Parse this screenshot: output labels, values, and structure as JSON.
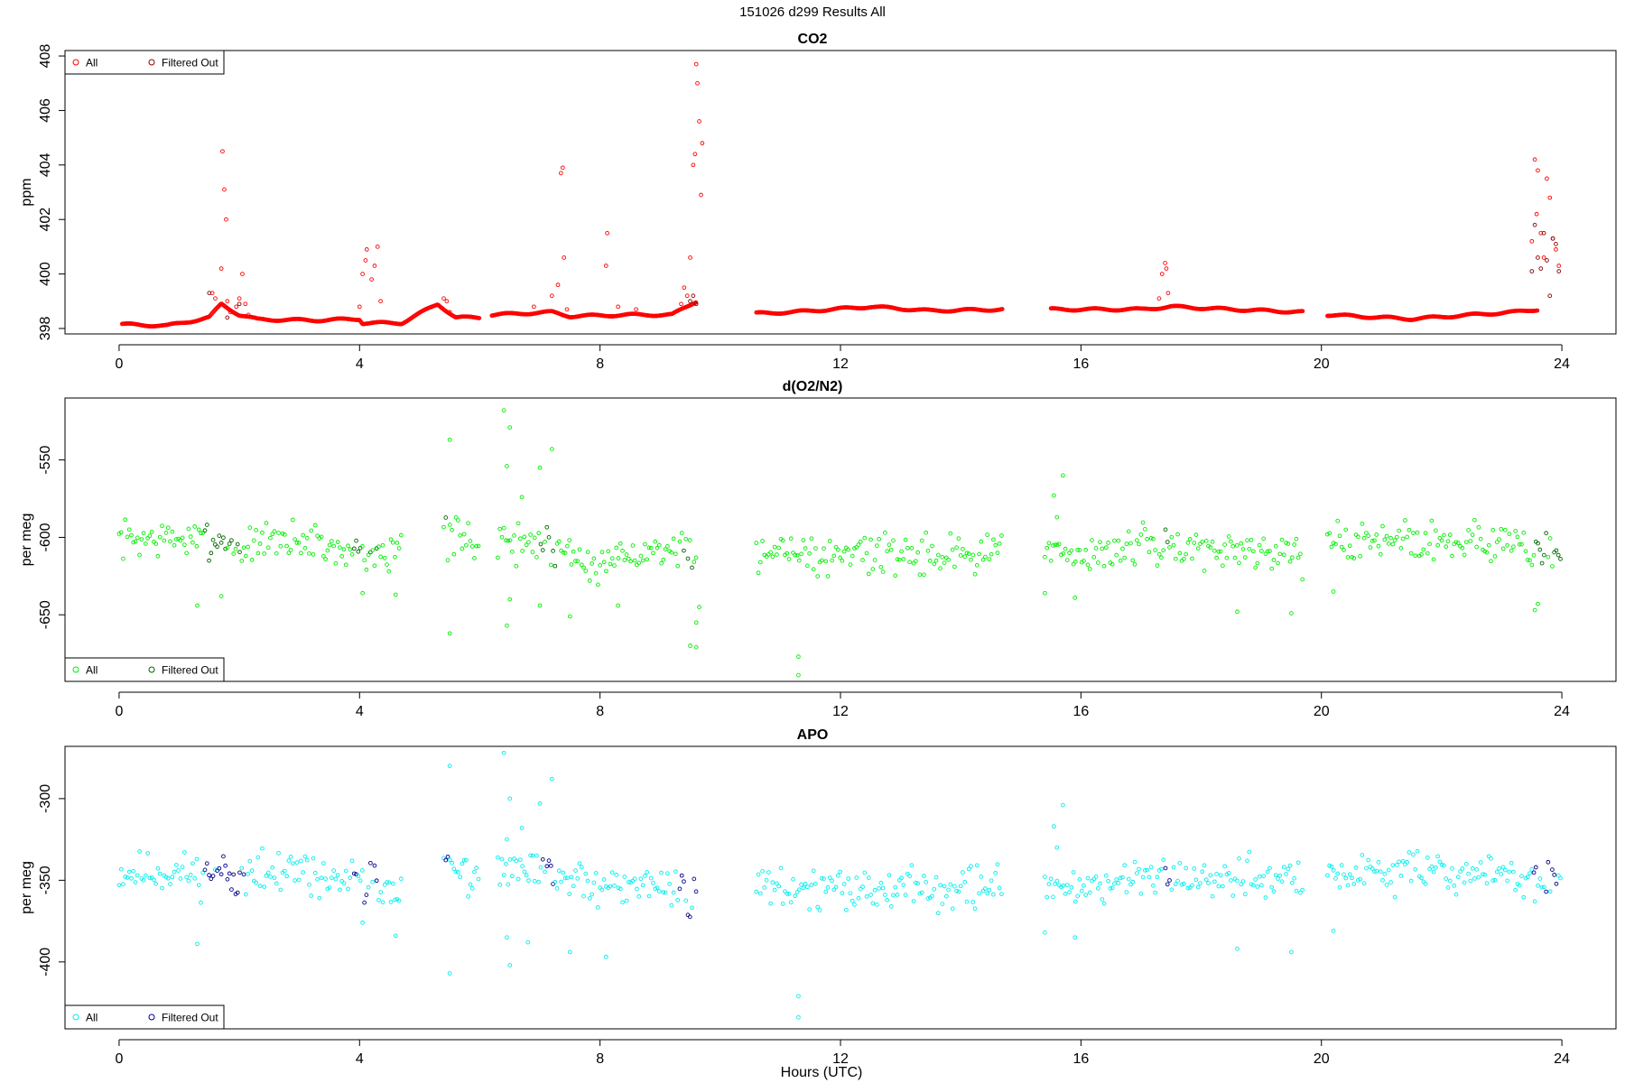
{
  "figure_title": "151026   d299   Results All",
  "x_axis_label": "Hours (UTC)",
  "chart_data": [
    {
      "type": "scatter",
      "title": "CO2",
      "ylabel": "ppm",
      "xlabel": "",
      "xlim": [
        -0.9,
        24.9
      ],
      "ylim": [
        397.8,
        408.2
      ],
      "x_ticks": [
        "0",
        "4",
        "8",
        "12",
        "16",
        "20",
        "24"
      ],
      "y_ticks": [
        "398",
        "400",
        "402",
        "404",
        "406",
        "408"
      ],
      "y_tick_values": [
        398,
        400,
        402,
        404,
        406,
        408
      ],
      "legend": {
        "position": "top-left",
        "entries": [
          "All",
          "Filtered Out"
        ]
      },
      "colors": {
        "all": "#ff0000",
        "filtered": "#8b0000"
      },
      "baseline": [
        [
          0.05,
          398.15
        ],
        [
          0.8,
          398.1
        ],
        [
          1.5,
          398.4
        ],
        [
          1.7,
          398.9
        ],
        [
          2.0,
          398.5
        ],
        [
          2.3,
          398.33
        ],
        [
          3.3,
          398.3
        ],
        [
          4.0,
          398.35
        ],
        [
          4.05,
          398.2
        ],
        [
          4.7,
          398.2
        ],
        [
          5.3,
          398.9
        ],
        [
          5.6,
          398.4
        ],
        [
          6.0,
          398.4
        ],
        [
          6.2,
          null
        ],
        [
          6.2,
          398.5
        ],
        [
          7.2,
          398.6
        ],
        [
          7.5,
          398.45
        ],
        [
          8.5,
          398.5
        ],
        [
          9.2,
          398.5
        ],
        [
          9.6,
          399.0
        ],
        [
          9.65,
          null
        ],
        [
          10.6,
          398.55
        ],
        [
          11.2,
          398.6
        ],
        [
          12.5,
          398.8
        ],
        [
          13.5,
          398.65
        ],
        [
          14.7,
          398.7
        ],
        [
          14.75,
          null
        ],
        [
          15.5,
          398.7
        ],
        [
          17.0,
          398.7
        ],
        [
          17.5,
          398.8
        ],
        [
          18.5,
          398.7
        ],
        [
          19.7,
          398.6
        ],
        [
          19.75,
          null
        ],
        [
          20.1,
          398.5
        ],
        [
          21.5,
          398.35
        ],
        [
          22.5,
          398.5
        ],
        [
          23.2,
          398.6
        ],
        [
          23.6,
          398.7
        ]
      ],
      "all_points": [
        [
          1.55,
          399.3
        ],
        [
          1.6,
          399.1
        ],
        [
          1.65,
          398.8
        ],
        [
          1.7,
          400.2
        ],
        [
          1.72,
          404.5
        ],
        [
          1.75,
          403.1
        ],
        [
          1.78,
          402.0
        ],
        [
          1.8,
          399.0
        ],
        [
          1.85,
          398.6
        ],
        [
          1.95,
          398.8
        ],
        [
          2.0,
          399.1
        ],
        [
          2.05,
          400.0
        ],
        [
          2.1,
          398.9
        ],
        [
          2.15,
          398.5
        ],
        [
          4.0,
          398.8
        ],
        [
          4.05,
          400.0
        ],
        [
          4.1,
          400.5
        ],
        [
          4.12,
          400.9
        ],
        [
          4.2,
          399.8
        ],
        [
          4.25,
          400.3
        ],
        [
          4.3,
          401.0
        ],
        [
          4.35,
          399.0
        ],
        [
          5.4,
          399.1
        ],
        [
          5.45,
          399.0
        ],
        [
          5.5,
          398.6
        ],
        [
          6.9,
          398.8
        ],
        [
          7.2,
          399.2
        ],
        [
          7.3,
          399.6
        ],
        [
          7.35,
          403.7
        ],
        [
          7.38,
          403.9
        ],
        [
          7.4,
          400.6
        ],
        [
          7.45,
          398.7
        ],
        [
          8.1,
          400.3
        ],
        [
          8.12,
          401.5
        ],
        [
          8.3,
          398.8
        ],
        [
          8.6,
          398.7
        ],
        [
          9.35,
          398.9
        ],
        [
          9.4,
          399.5
        ],
        [
          9.45,
          399.2
        ],
        [
          9.5,
          400.6
        ],
        [
          9.55,
          404.0
        ],
        [
          9.58,
          404.4
        ],
        [
          9.6,
          407.7
        ],
        [
          9.62,
          407.0
        ],
        [
          9.65,
          405.6
        ],
        [
          9.68,
          402.9
        ],
        [
          9.7,
          404.8
        ],
        [
          17.3,
          399.1
        ],
        [
          17.35,
          400.0
        ],
        [
          17.4,
          400.4
        ],
        [
          17.42,
          400.2
        ],
        [
          17.45,
          399.3
        ],
        [
          23.5,
          401.2
        ],
        [
          23.55,
          404.2
        ],
        [
          23.58,
          402.2
        ],
        [
          23.6,
          403.8
        ],
        [
          23.65,
          401.5
        ],
        [
          23.7,
          400.6
        ],
        [
          23.75,
          403.5
        ],
        [
          23.8,
          402.8
        ],
        [
          23.85,
          401.3
        ],
        [
          23.9,
          400.9
        ],
        [
          23.95,
          400.3
        ]
      ],
      "filtered_points": [
        [
          1.5,
          399.3
        ],
        [
          1.8,
          398.4
        ],
        [
          2.0,
          398.9
        ],
        [
          9.5,
          399.0
        ],
        [
          9.55,
          399.2
        ],
        [
          9.6,
          398.9
        ],
        [
          23.5,
          400.1
        ],
        [
          23.55,
          401.8
        ],
        [
          23.6,
          400.6
        ],
        [
          23.65,
          400.2
        ],
        [
          23.7,
          401.5
        ],
        [
          23.75,
          400.5
        ],
        [
          23.8,
          399.2
        ],
        [
          23.85,
          401.3
        ],
        [
          23.9,
          401.1
        ],
        [
          23.95,
          400.1
        ]
      ]
    },
    {
      "type": "scatter",
      "title": "d(O2/N2)",
      "ylabel": "per meg",
      "xlabel": "",
      "xlim": [
        -0.9,
        24.9
      ],
      "ylim": [
        -693,
        -510
      ],
      "x_ticks": [
        "0",
        "4",
        "8",
        "12",
        "16",
        "20",
        "24"
      ],
      "y_ticks": [
        "-550",
        "-600",
        "-650"
      ],
      "y_tick_values": [
        -550,
        -600,
        -650
      ],
      "legend": {
        "position": "bottom-left",
        "entries": [
          "All",
          "Filtered Out"
        ]
      },
      "colors": {
        "all": "#00ee00",
        "filtered": "#006400"
      },
      "noise": {
        "seed": 7,
        "spread": 9
      },
      "baseline": [
        [
          0.0,
          -601
        ],
        [
          1.0,
          -601
        ],
        [
          2.0,
          -606
        ],
        [
          3.0,
          -601
        ],
        [
          4.0,
          -610
        ],
        [
          4.7,
          -605
        ],
        [
          4.75,
          null
        ],
        [
          5.4,
          -599
        ],
        [
          6.0,
          -603
        ],
        [
          6.05,
          null
        ],
        [
          6.3,
          -602
        ],
        [
          7.2,
          -605
        ],
        [
          8.0,
          -616
        ],
        [
          9.0,
          -607
        ],
        [
          9.6,
          -616
        ],
        [
          9.65,
          null
        ],
        [
          10.6,
          -607
        ],
        [
          12.0,
          -610
        ],
        [
          13.0,
          -610
        ],
        [
          14.7,
          -609
        ],
        [
          14.75,
          null
        ],
        [
          15.4,
          -610
        ],
        [
          16.0,
          -611
        ],
        [
          17.0,
          -606
        ],
        [
          18.0,
          -606
        ],
        [
          19.7,
          -610
        ],
        [
          19.75,
          null
        ],
        [
          20.1,
          -603
        ],
        [
          21.0,
          -602
        ],
        [
          22.0,
          -601
        ],
        [
          23.0,
          -603
        ],
        [
          23.5,
          -610
        ],
        [
          24.0,
          -611
        ]
      ],
      "filtered_ranges": [
        [
          1.4,
          2.1
        ],
        [
          3.9,
          4.3
        ],
        [
          5.4,
          5.5
        ],
        [
          7.0,
          7.3
        ],
        [
          9.3,
          9.6
        ],
        [
          17.4,
          17.5
        ],
        [
          23.5,
          24.0
        ]
      ],
      "outliers": [
        [
          5.5,
          -537
        ],
        [
          5.5,
          -662
        ],
        [
          6.4,
          -518
        ],
        [
          6.5,
          -529
        ],
        [
          6.45,
          -554
        ],
        [
          6.7,
          -574
        ],
        [
          7.0,
          -555
        ],
        [
          7.2,
          -543
        ],
        [
          6.5,
          -640
        ],
        [
          6.45,
          -657
        ],
        [
          7.0,
          -644
        ],
        [
          7.5,
          -651
        ],
        [
          8.3,
          -644
        ],
        [
          9.5,
          -670
        ],
        [
          9.6,
          -671
        ],
        [
          9.6,
          -655
        ],
        [
          9.65,
          -645
        ],
        [
          11.3,
          -677
        ],
        [
          11.3,
          -689
        ],
        [
          15.55,
          -573
        ],
        [
          15.7,
          -560
        ],
        [
          15.6,
          -587
        ],
        [
          15.4,
          -636
        ],
        [
          15.9,
          -639
        ],
        [
          18.6,
          -648
        ],
        [
          19.5,
          -649
        ],
        [
          1.3,
          -644
        ],
        [
          1.7,
          -638
        ],
        [
          4.05,
          -636
        ],
        [
          4.6,
          -637
        ],
        [
          20.2,
          -635
        ],
        [
          23.55,
          -647
        ],
        [
          23.6,
          -643
        ]
      ]
    },
    {
      "type": "scatter",
      "title": "APO",
      "ylabel": "per meg",
      "xlabel": "Hours (UTC)",
      "xlim": [
        -0.9,
        24.9
      ],
      "ylim": [
        -441,
        -268
      ],
      "x_ticks": [
        "0",
        "4",
        "8",
        "12",
        "16",
        "20",
        "24"
      ],
      "y_ticks": [
        "-300",
        "-350",
        "-400"
      ],
      "y_tick_values": [
        -300,
        -350,
        -400
      ],
      "legend": {
        "position": "bottom-left",
        "entries": [
          "All",
          "Filtered Out"
        ]
      },
      "colors": {
        "all": "#00eeee",
        "filtered": "#00008b"
      },
      "noise": {
        "seed": 11,
        "spread": 9
      },
      "baseline": [
        [
          0.0,
          -345
        ],
        [
          1.0,
          -345
        ],
        [
          2.0,
          -349
        ],
        [
          3.0,
          -346
        ],
        [
          4.0,
          -352
        ],
        [
          4.7,
          -352
        ],
        [
          4.75,
          null
        ],
        [
          5.4,
          -342
        ],
        [
          6.0,
          -350
        ],
        [
          6.05,
          null
        ],
        [
          6.3,
          -345
        ],
        [
          7.2,
          -346
        ],
        [
          8.0,
          -356
        ],
        [
          9.0,
          -352
        ],
        [
          9.6,
          -360
        ],
        [
          9.65,
          null
        ],
        [
          10.6,
          -353
        ],
        [
          12.0,
          -356
        ],
        [
          13.0,
          -354
        ],
        [
          14.7,
          -354
        ],
        [
          14.75,
          null
        ],
        [
          15.4,
          -353
        ],
        [
          16.0,
          -354
        ],
        [
          17.0,
          -349
        ],
        [
          18.0,
          -348
        ],
        [
          19.7,
          -352
        ],
        [
          19.75,
          null
        ],
        [
          20.1,
          -346
        ],
        [
          21.0,
          -345
        ],
        [
          22.0,
          -344
        ],
        [
          23.0,
          -346
        ],
        [
          23.5,
          -350
        ],
        [
          24.0,
          -350
        ]
      ],
      "filtered_ranges": [
        [
          1.4,
          2.1
        ],
        [
          3.9,
          4.3
        ],
        [
          5.4,
          5.5
        ],
        [
          7.0,
          7.4
        ],
        [
          9.3,
          9.6
        ],
        [
          17.4,
          17.5
        ],
        [
          23.5,
          24.0
        ]
      ],
      "outliers": [
        [
          5.5,
          -280
        ],
        [
          5.5,
          -407
        ],
        [
          6.4,
          -272
        ],
        [
          6.5,
          -300
        ],
        [
          6.45,
          -325
        ],
        [
          6.7,
          -318
        ],
        [
          7.0,
          -303
        ],
        [
          7.2,
          -288
        ],
        [
          6.5,
          -402
        ],
        [
          6.45,
          -385
        ],
        [
          6.8,
          -388
        ],
        [
          7.5,
          -394
        ],
        [
          8.1,
          -397
        ],
        [
          11.3,
          -421
        ],
        [
          11.3,
          -434
        ],
        [
          15.55,
          -317
        ],
        [
          15.7,
          -304
        ],
        [
          15.6,
          -330
        ],
        [
          15.4,
          -382
        ],
        [
          15.9,
          -385
        ],
        [
          18.6,
          -392
        ],
        [
          19.5,
          -394
        ],
        [
          1.3,
          -389
        ],
        [
          4.05,
          -376
        ],
        [
          4.6,
          -384
        ],
        [
          20.2,
          -381
        ],
        [
          23.55,
          -363
        ]
      ]
    }
  ]
}
